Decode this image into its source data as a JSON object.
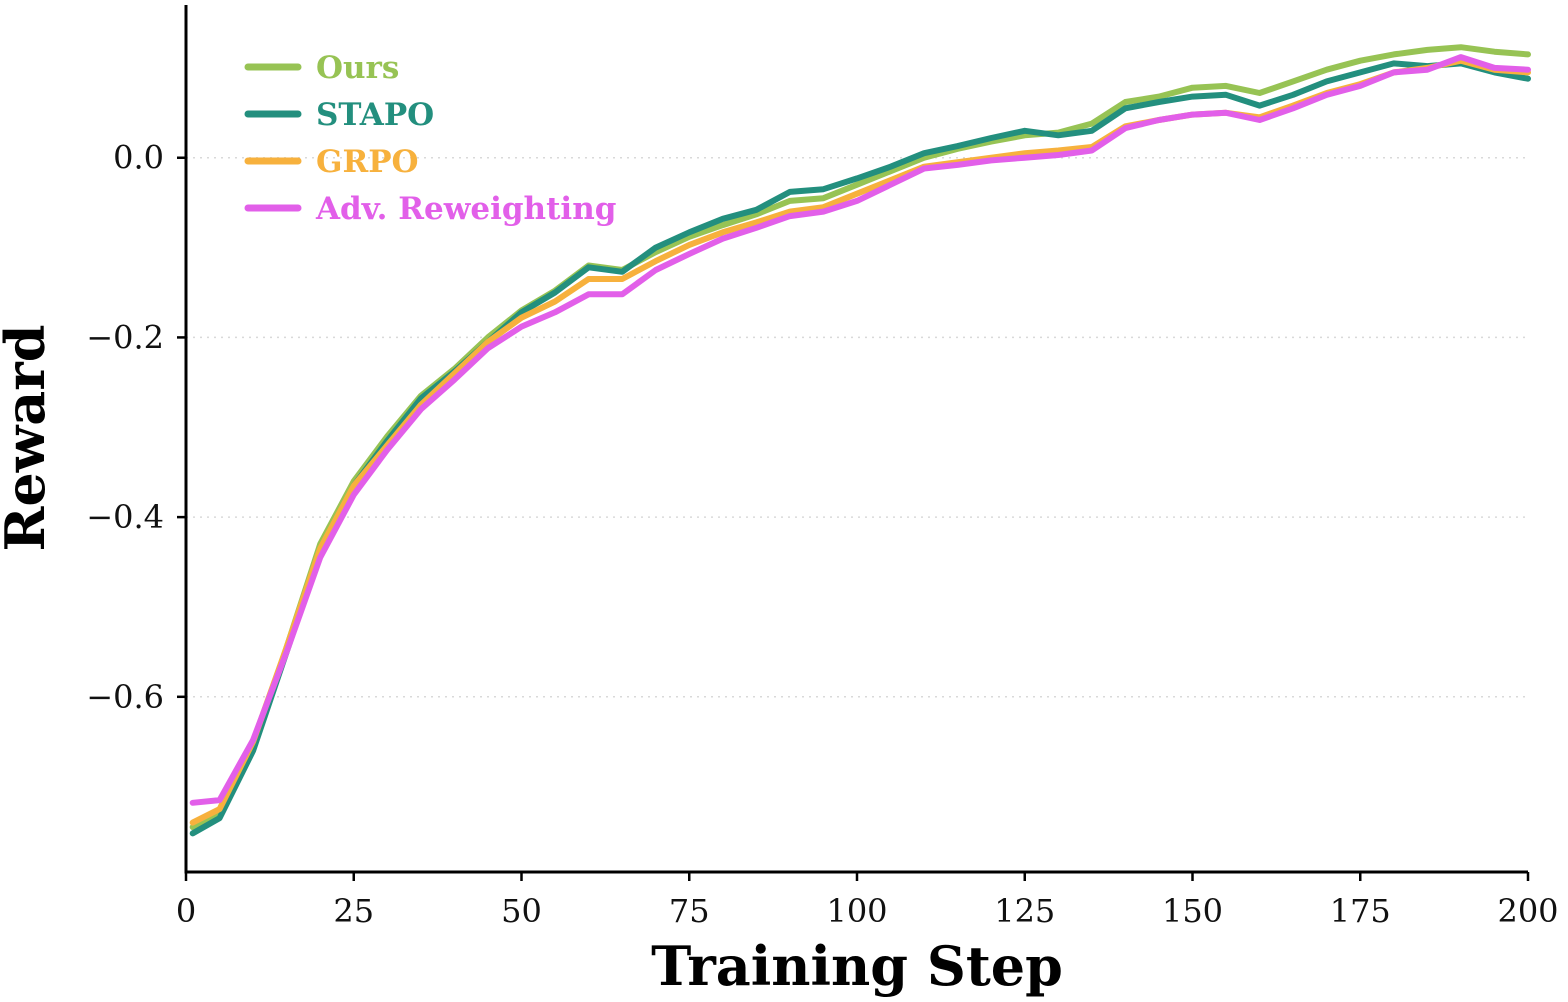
{
  "chart_data": {
    "type": "line",
    "xlabel": "Training Step",
    "ylabel": "Reward",
    "xlim": [
      0,
      200
    ],
    "ylim": [
      -0.795,
      0.17
    ],
    "x_ticks": [
      0,
      25,
      50,
      75,
      100,
      125,
      150,
      175,
      200
    ],
    "x_tick_labels": [
      "0",
      "25",
      "50",
      "75",
      "100",
      "125",
      "150",
      "175",
      "200"
    ],
    "y_ticks": [
      -0.6,
      -0.4,
      -0.2,
      0.0
    ],
    "y_tick_labels": [
      "−0.6",
      "−0.4",
      "−0.2",
      "0.0"
    ],
    "grid": "horizontal-dotted",
    "legend_position": "top-left",
    "x": [
      1,
      5,
      10,
      15,
      20,
      25,
      30,
      35,
      40,
      45,
      50,
      55,
      60,
      65,
      70,
      75,
      80,
      85,
      90,
      95,
      100,
      105,
      110,
      115,
      120,
      125,
      130,
      135,
      140,
      145,
      150,
      155,
      160,
      165,
      170,
      175,
      180,
      185,
      190,
      195,
      200
    ],
    "series": [
      {
        "name": "Ours",
        "color": "#97c354",
        "values": [
          -0.745,
          -0.73,
          -0.655,
          -0.545,
          -0.43,
          -0.36,
          -0.31,
          -0.265,
          -0.235,
          -0.2,
          -0.17,
          -0.148,
          -0.12,
          -0.125,
          -0.105,
          -0.088,
          -0.075,
          -0.063,
          -0.048,
          -0.045,
          -0.03,
          -0.015,
          0.0,
          0.01,
          0.018,
          0.025,
          0.028,
          0.038,
          0.062,
          0.068,
          0.078,
          0.08,
          0.072,
          0.085,
          0.098,
          0.108,
          0.115,
          0.12,
          0.123,
          0.118,
          0.115
        ]
      },
      {
        "name": "STAPO",
        "color": "#238f7e",
        "values": [
          -0.752,
          -0.735,
          -0.66,
          -0.55,
          -0.44,
          -0.365,
          -0.315,
          -0.268,
          -0.238,
          -0.205,
          -0.172,
          -0.15,
          -0.122,
          -0.127,
          -0.1,
          -0.083,
          -0.068,
          -0.058,
          -0.038,
          -0.035,
          -0.023,
          -0.01,
          0.005,
          0.013,
          0.022,
          0.03,
          0.025,
          0.03,
          0.055,
          0.062,
          0.068,
          0.07,
          0.058,
          0.07,
          0.085,
          0.095,
          0.105,
          0.102,
          0.105,
          0.095,
          0.088
        ]
      },
      {
        "name": "GRPO",
        "color": "#f7b13d",
        "values": [
          -0.74,
          -0.725,
          -0.65,
          -0.545,
          -0.435,
          -0.365,
          -0.32,
          -0.275,
          -0.24,
          -0.205,
          -0.178,
          -0.16,
          -0.135,
          -0.135,
          -0.115,
          -0.097,
          -0.083,
          -0.072,
          -0.06,
          -0.055,
          -0.04,
          -0.025,
          -0.01,
          -0.005,
          0.0,
          0.005,
          0.008,
          0.012,
          0.035,
          0.042,
          0.048,
          0.05,
          0.045,
          0.058,
          0.072,
          0.082,
          0.095,
          0.1,
          0.108,
          0.098,
          0.095
        ]
      },
      {
        "name": "Adv. Reweighting",
        "color": "#e25fe9",
        "values": [
          -0.718,
          -0.715,
          -0.648,
          -0.55,
          -0.445,
          -0.375,
          -0.325,
          -0.28,
          -0.247,
          -0.212,
          -0.188,
          -0.172,
          -0.152,
          -0.152,
          -0.125,
          -0.107,
          -0.09,
          -0.078,
          -0.065,
          -0.06,
          -0.048,
          -0.03,
          -0.012,
          -0.008,
          -0.003,
          0.0,
          0.003,
          0.008,
          0.033,
          0.042,
          0.048,
          0.05,
          0.042,
          0.055,
          0.07,
          0.08,
          0.095,
          0.098,
          0.112,
          0.1,
          0.098
        ]
      }
    ]
  }
}
